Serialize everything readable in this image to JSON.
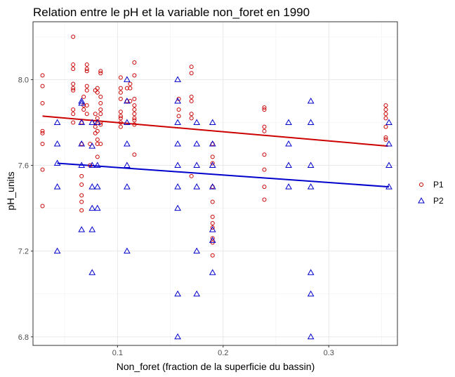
{
  "chart_data": {
    "type": "scatter",
    "title": "Relation entre le pH et la variable non_foret en 1990",
    "xlabel": "Non_foret (fraction de la superficie du bassin)",
    "ylabel": "pH_units",
    "xlim": [
      0.02,
      0.365
    ],
    "ylim": [
      6.76,
      8.27
    ],
    "x_ticks": [
      0.1,
      0.2,
      0.3
    ],
    "x_tick_labels": [
      "0.1",
      "0.2",
      "0.3"
    ],
    "y_ticks": [
      6.8,
      7.2,
      7.6,
      8.0
    ],
    "y_tick_labels": [
      "6.8",
      "7.2",
      "7.6",
      "8.0"
    ],
    "grid": true,
    "legend_position": "right",
    "series": [
      {
        "name": "P1",
        "marker": "circle",
        "color": "#cc0000",
        "points": [
          [
            0.029,
            8.02
          ],
          [
            0.029,
            7.97
          ],
          [
            0.029,
            7.89
          ],
          [
            0.029,
            7.76
          ],
          [
            0.029,
            7.75
          ],
          [
            0.029,
            7.7
          ],
          [
            0.029,
            7.58
          ],
          [
            0.029,
            7.41
          ],
          [
            0.058,
            8.2
          ],
          [
            0.058,
            8.07
          ],
          [
            0.058,
            8.05
          ],
          [
            0.058,
            7.98
          ],
          [
            0.058,
            7.96
          ],
          [
            0.058,
            7.95
          ],
          [
            0.058,
            7.86
          ],
          [
            0.058,
            7.84
          ],
          [
            0.058,
            7.8
          ],
          [
            0.066,
            7.8
          ],
          [
            0.066,
            7.7
          ],
          [
            0.066,
            7.55
          ],
          [
            0.066,
            7.51
          ],
          [
            0.066,
            7.46
          ],
          [
            0.066,
            7.43
          ],
          [
            0.066,
            7.39
          ],
          [
            0.068,
            7.86
          ],
          [
            0.068,
            7.92
          ],
          [
            0.068,
            7.88
          ],
          [
            0.071,
            8.07
          ],
          [
            0.071,
            8.05
          ],
          [
            0.071,
            8.04
          ],
          [
            0.071,
            7.97
          ],
          [
            0.071,
            7.95
          ],
          [
            0.071,
            7.88
          ],
          [
            0.071,
            7.84
          ],
          [
            0.074,
            7.7
          ],
          [
            0.074,
            7.6
          ],
          [
            0.079,
            7.95
          ],
          [
            0.079,
            7.84
          ],
          [
            0.079,
            7.8
          ],
          [
            0.079,
            7.78
          ],
          [
            0.079,
            7.75
          ],
          [
            0.081,
            7.96
          ],
          [
            0.081,
            7.94
          ],
          [
            0.081,
            7.82
          ],
          [
            0.081,
            7.76
          ],
          [
            0.081,
            7.72
          ],
          [
            0.081,
            7.7
          ],
          [
            0.081,
            7.64
          ],
          [
            0.084,
            8.04
          ],
          [
            0.084,
            8.03
          ],
          [
            0.084,
            7.92
          ],
          [
            0.084,
            7.89
          ],
          [
            0.084,
            7.86
          ],
          [
            0.084,
            7.84
          ],
          [
            0.084,
            7.8
          ],
          [
            0.084,
            7.79
          ],
          [
            0.084,
            7.7
          ],
          [
            0.103,
            8.01
          ],
          [
            0.103,
            7.96
          ],
          [
            0.103,
            7.94
          ],
          [
            0.103,
            7.91
          ],
          [
            0.103,
            7.85
          ],
          [
            0.103,
            7.83
          ],
          [
            0.103,
            7.82
          ],
          [
            0.103,
            7.8
          ],
          [
            0.103,
            7.78
          ],
          [
            0.109,
            7.96
          ],
          [
            0.109,
            7.9
          ],
          [
            0.112,
            7.98
          ],
          [
            0.112,
            7.96
          ],
          [
            0.112,
            7.9
          ],
          [
            0.116,
            8.08
          ],
          [
            0.116,
            8.02
          ],
          [
            0.116,
            7.91
          ],
          [
            0.116,
            7.88
          ],
          [
            0.116,
            7.86
          ],
          [
            0.116,
            7.84
          ],
          [
            0.116,
            7.82
          ],
          [
            0.116,
            7.81
          ],
          [
            0.116,
            7.79
          ],
          [
            0.116,
            7.65
          ],
          [
            0.158,
            7.91
          ],
          [
            0.158,
            7.86
          ],
          [
            0.158,
            7.83
          ],
          [
            0.17,
            8.06
          ],
          [
            0.17,
            8.03
          ],
          [
            0.17,
            7.92
          ],
          [
            0.17,
            7.9
          ],
          [
            0.17,
            7.84
          ],
          [
            0.17,
            7.82
          ],
          [
            0.17,
            7.55
          ],
          [
            0.19,
            7.7
          ],
          [
            0.19,
            7.64
          ],
          [
            0.19,
            7.61
          ],
          [
            0.19,
            7.5
          ],
          [
            0.19,
            7.43
          ],
          [
            0.19,
            7.36
          ],
          [
            0.19,
            7.33
          ],
          [
            0.19,
            7.31
          ],
          [
            0.19,
            7.26
          ],
          [
            0.19,
            7.24
          ],
          [
            0.19,
            7.18
          ],
          [
            0.239,
            7.87
          ],
          [
            0.239,
            7.86
          ],
          [
            0.239,
            7.78
          ],
          [
            0.239,
            7.76
          ],
          [
            0.239,
            7.65
          ],
          [
            0.239,
            7.58
          ],
          [
            0.239,
            7.5
          ],
          [
            0.239,
            7.44
          ],
          [
            0.354,
            7.88
          ],
          [
            0.354,
            7.86
          ],
          [
            0.354,
            7.84
          ],
          [
            0.354,
            7.82
          ],
          [
            0.354,
            7.78
          ],
          [
            0.354,
            7.73
          ],
          [
            0.354,
            7.72
          ]
        ],
        "trend": [
          [
            0.029,
            7.83
          ],
          [
            0.356,
            7.69
          ]
        ]
      },
      {
        "name": "P2",
        "marker": "triangle",
        "color": "#0000cc",
        "points": [
          [
            0.043,
            7.8
          ],
          [
            0.043,
            7.7
          ],
          [
            0.043,
            7.61
          ],
          [
            0.043,
            7.5
          ],
          [
            0.043,
            7.2
          ],
          [
            0.066,
            7.9
          ],
          [
            0.066,
            7.89
          ],
          [
            0.066,
            7.8
          ],
          [
            0.066,
            7.7
          ],
          [
            0.066,
            7.6
          ],
          [
            0.066,
            7.3
          ],
          [
            0.076,
            7.8
          ],
          [
            0.076,
            7.69
          ],
          [
            0.076,
            7.6
          ],
          [
            0.076,
            7.5
          ],
          [
            0.076,
            7.4
          ],
          [
            0.076,
            7.3
          ],
          [
            0.076,
            7.1
          ],
          [
            0.081,
            7.8
          ],
          [
            0.081,
            7.6
          ],
          [
            0.081,
            7.5
          ],
          [
            0.081,
            7.4
          ],
          [
            0.109,
            8.0
          ],
          [
            0.109,
            7.9
          ],
          [
            0.109,
            7.8
          ],
          [
            0.109,
            7.7
          ],
          [
            0.109,
            7.6
          ],
          [
            0.109,
            7.5
          ],
          [
            0.109,
            7.2
          ],
          [
            0.157,
            8.0
          ],
          [
            0.157,
            7.9
          ],
          [
            0.157,
            7.8
          ],
          [
            0.157,
            7.7
          ],
          [
            0.157,
            7.6
          ],
          [
            0.157,
            7.5
          ],
          [
            0.157,
            7.4
          ],
          [
            0.157,
            7.0
          ],
          [
            0.157,
            6.8
          ],
          [
            0.175,
            7.8
          ],
          [
            0.175,
            7.7
          ],
          [
            0.175,
            7.6
          ],
          [
            0.175,
            7.5
          ],
          [
            0.175,
            7.2
          ],
          [
            0.175,
            7.0
          ],
          [
            0.19,
            7.8
          ],
          [
            0.19,
            7.7
          ],
          [
            0.19,
            7.6
          ],
          [
            0.19,
            7.5
          ],
          [
            0.19,
            7.3
          ],
          [
            0.19,
            7.25
          ],
          [
            0.19,
            7.1
          ],
          [
            0.262,
            7.8
          ],
          [
            0.262,
            7.7
          ],
          [
            0.262,
            7.6
          ],
          [
            0.262,
            7.5
          ],
          [
            0.283,
            7.9
          ],
          [
            0.283,
            7.8
          ],
          [
            0.283,
            7.6
          ],
          [
            0.283,
            7.5
          ],
          [
            0.283,
            7.1
          ],
          [
            0.283,
            7.0
          ],
          [
            0.283,
            6.8
          ],
          [
            0.357,
            7.8
          ],
          [
            0.357,
            7.7
          ],
          [
            0.357,
            7.6
          ],
          [
            0.357,
            7.5
          ]
        ],
        "trend": [
          [
            0.043,
            7.61
          ],
          [
            0.357,
            7.5
          ]
        ]
      }
    ]
  }
}
